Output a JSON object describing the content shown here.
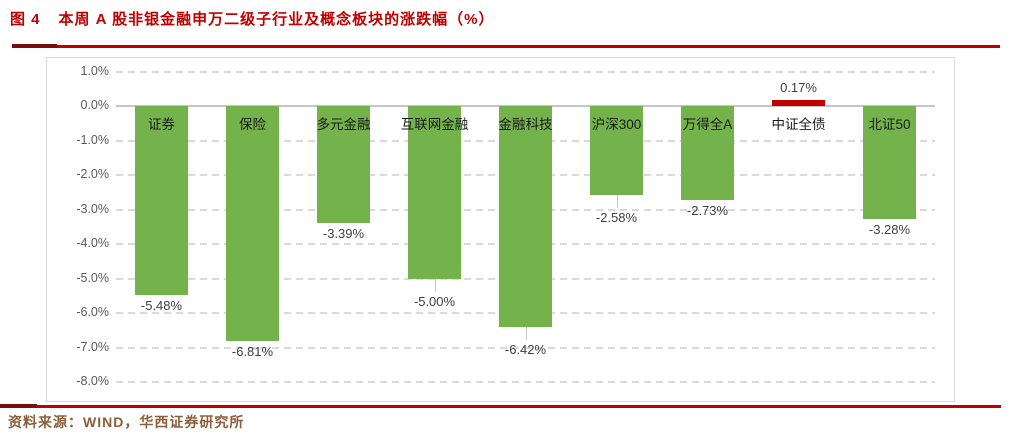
{
  "header": {
    "figure_label": "图 4",
    "title": "本周 A 股非银金融申万二级子行业及概念板块的涨跌幅（%）"
  },
  "footer": {
    "source_text": "资料来源：WIND，华西证券研究所"
  },
  "colors": {
    "title_red": "#C00000",
    "accent_red": "#C00000",
    "rule_dark": "#7A0C0C",
    "bar_green": "#74B24C",
    "bar_red": "#C00000",
    "grid": "#D9D9D9",
    "zero_line": "#C6C6C6",
    "axis_text": "#595959",
    "category_text": "#1A1A1A",
    "value_text": "#3F3F3F",
    "footer_text": "#8C5F3C"
  },
  "chart_data": {
    "type": "bar",
    "title": "本周 A 股非银金融申万二级子行业及概念板块的涨跌幅（%）",
    "categories": [
      "证券",
      "保险",
      "多元金融",
      "互联网金融",
      "金融科技",
      "沪深300",
      "万得全A",
      "中证全债",
      "北证50"
    ],
    "values": [
      -5.48,
      -6.81,
      -3.39,
      -5.0,
      -6.42,
      -2.58,
      -2.73,
      0.17,
      -3.28
    ],
    "value_labels": [
      "-5.48%",
      "-6.81%",
      "-3.39%",
      "-5.00%",
      "-6.42%",
      "-2.58%",
      "-2.73%",
      "0.17%",
      "-3.28%"
    ],
    "leader_lines": [
      false,
      false,
      false,
      true,
      true,
      true,
      false,
      false,
      false
    ],
    "bar_color_negative": "#74B24C",
    "bar_color_positive": "#C00000",
    "xlabel": "",
    "ylabel": "",
    "ylim": [
      -8.0,
      1.0
    ],
    "ytick_values": [
      1.0,
      0.0,
      -1.0,
      -2.0,
      -3.0,
      -4.0,
      -5.0,
      -6.0,
      -7.0,
      -8.0
    ],
    "ytick_labels": [
      "1.0%",
      "0.0%",
      "-1.0%",
      "-2.0%",
      "-3.0%",
      "-4.0%",
      "-5.0%",
      "-6.0%",
      "-7.0%",
      "-8.0%"
    ],
    "grid": "horizontal-dashed",
    "legend": "none"
  }
}
